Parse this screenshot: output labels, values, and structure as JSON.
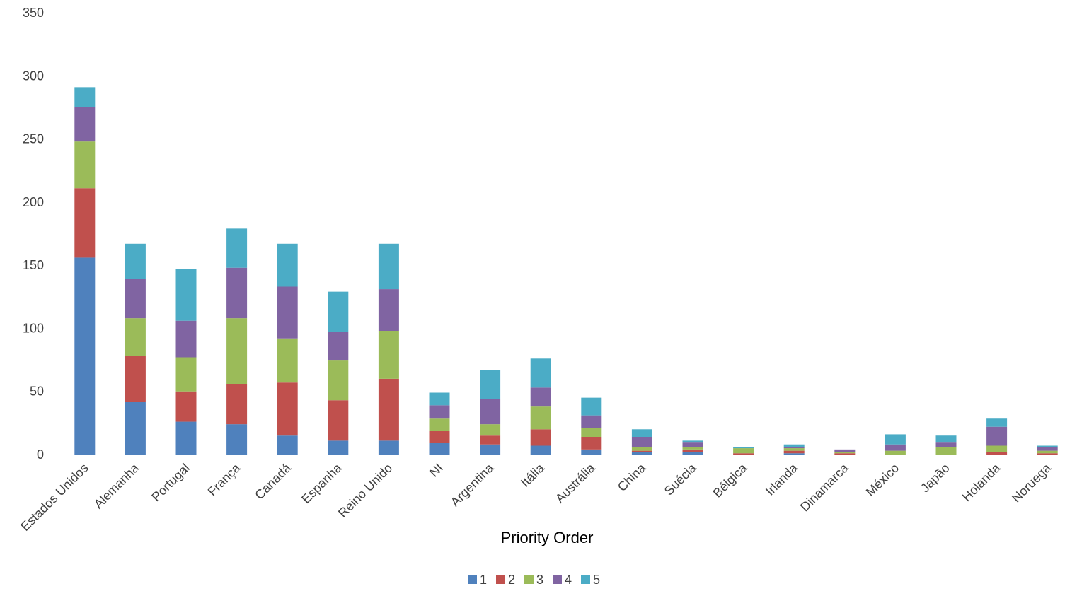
{
  "chart_data": {
    "type": "bar",
    "stacked": true,
    "title": "",
    "xlabel": "Priority Order",
    "ylabel": "",
    "ylim": [
      0,
      350
    ],
    "yticks": [
      0,
      50,
      100,
      150,
      200,
      250,
      300,
      350
    ],
    "grid": false,
    "legend_position": "bottom",
    "categories": [
      "Estados Unidos",
      "Alemanha",
      "Portugal",
      "França",
      "Canadá",
      "Espanha",
      "Reino Unido",
      "NI",
      "Argentina",
      "Itália",
      "Austrália",
      "China",
      "Suécia",
      "Bélgica",
      "Irlanda",
      "Dinamarca",
      "México",
      "Japão",
      "Holanda",
      "Noruega"
    ],
    "series": [
      {
        "name": "1",
        "color": "#4F81BD",
        "values": [
          156,
          42,
          26,
          24,
          15,
          11,
          11,
          9,
          8,
          7,
          4,
          2,
          2,
          0,
          1,
          0,
          0,
          0,
          0,
          0
        ]
      },
      {
        "name": "2",
        "color": "#C0504D",
        "values": [
          55,
          36,
          24,
          32,
          42,
          32,
          49,
          10,
          7,
          13,
          10,
          1,
          2,
          1,
          2,
          1,
          0,
          0,
          2,
          1
        ]
      },
      {
        "name": "3",
        "color": "#9BBB59",
        "values": [
          37,
          30,
          27,
          52,
          35,
          32,
          38,
          10,
          9,
          18,
          7,
          3,
          2,
          4,
          2,
          1,
          3,
          6,
          5,
          2
        ]
      },
      {
        "name": "4",
        "color": "#8064A2",
        "values": [
          27,
          31,
          29,
          40,
          41,
          22,
          33,
          10,
          20,
          15,
          10,
          8,
          4,
          0,
          1,
          2,
          5,
          4,
          15,
          3
        ]
      },
      {
        "name": "5",
        "color": "#4BACC6",
        "values": [
          16,
          28,
          41,
          31,
          34,
          32,
          36,
          10,
          23,
          23,
          14,
          6,
          1,
          1,
          2,
          0,
          8,
          5,
          7,
          1
        ]
      }
    ]
  }
}
